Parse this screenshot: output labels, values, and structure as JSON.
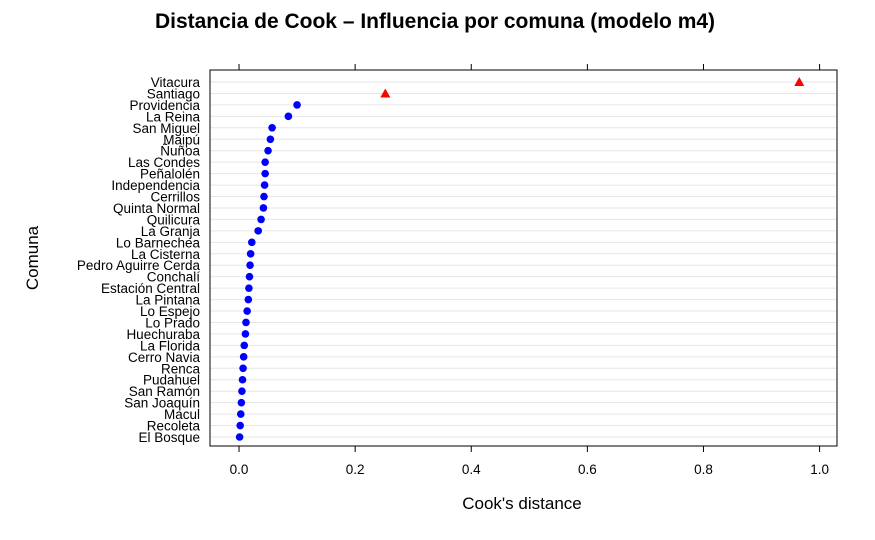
{
  "chart_data": {
    "type": "scatter",
    "title": "Distancia de Cook – Influencia por comuna (modelo m4)",
    "xlabel": "Cook's distance",
    "ylabel": "Comuna",
    "xlim": [
      -0.05,
      1.03
    ],
    "xticks": [
      "0.0",
      "0.2",
      "0.4",
      "0.6",
      "0.8",
      "1.0"
    ],
    "xtick_values": [
      0.0,
      0.2,
      0.4,
      0.6,
      0.8,
      1.0
    ],
    "grid": "horizontal",
    "marker_colors": {
      "normal": "#0000ff",
      "influential": "#ff0000"
    },
    "categories": [
      "Vitacura",
      "Santiago",
      "Providencia",
      "La Reina",
      "San Miguel",
      "Maipú",
      "Ñuñoa",
      "Las Condes",
      "Peñalolén",
      "Independencia",
      "Cerrillos",
      "Quinta Normal",
      "Quilicura",
      "La Granja",
      "Lo Barnechea",
      "La Cisterna",
      "Pedro Aguirre Cerda",
      "Conchalí",
      "Estación Central",
      "La Pintana",
      "Lo Espejo",
      "Lo Prado",
      "Huechuraba",
      "La Florida",
      "Cerro Navia",
      "Renca",
      "Pudahuel",
      "San Ramón",
      "San Joaquín",
      "Macul",
      "Recoleta",
      "El Bosque"
    ],
    "values": [
      0.965,
      0.252,
      0.1,
      0.085,
      0.057,
      0.054,
      0.05,
      0.045,
      0.045,
      0.044,
      0.043,
      0.042,
      0.038,
      0.033,
      0.022,
      0.02,
      0.019,
      0.018,
      0.017,
      0.016,
      0.014,
      0.012,
      0.011,
      0.009,
      0.008,
      0.007,
      0.006,
      0.005,
      0.004,
      0.003,
      0.002,
      0.001
    ],
    "influential": [
      true,
      true,
      false,
      false,
      false,
      false,
      false,
      false,
      false,
      false,
      false,
      false,
      false,
      false,
      false,
      false,
      false,
      false,
      false,
      false,
      false,
      false,
      false,
      false,
      false,
      false,
      false,
      false,
      false,
      false,
      false,
      false
    ]
  }
}
